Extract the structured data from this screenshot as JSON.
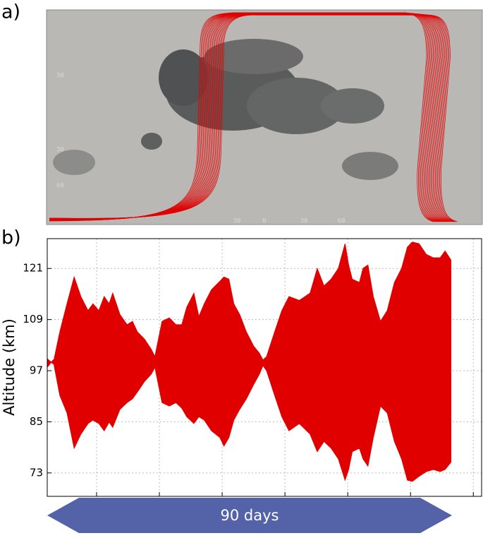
{
  "map": {
    "panel_label": "a)",
    "lat_labels": [
      "30",
      "30",
      "60"
    ],
    "lon_labels": [
      "30",
      "0",
      "30",
      "60"
    ]
  },
  "chart_data": {
    "type": "band",
    "panel_label": "b)",
    "y_label": "Altitude (km)",
    "annotation": "90 days",
    "color": "#e00000",
    "grid": true,
    "xlim": [
      0,
      97
    ],
    "xticks": [
      {
        "value": 11,
        "label": null
      },
      {
        "value": 25,
        "label": null
      },
      {
        "value": 39,
        "label": null
      },
      {
        "value": 53,
        "label": null
      },
      {
        "value": 67,
        "label": null
      },
      {
        "value": 81,
        "label": null
      },
      {
        "value": 95,
        "label": null
      }
    ],
    "ylim": [
      67.5,
      128
    ],
    "yticks": [
      73,
      85,
      97,
      109,
      121
    ],
    "x": [
      0,
      1.3,
      2.8,
      4.4,
      6.0,
      7.5,
      9.1,
      10.2,
      11.5,
      12.7,
      13.8,
      14.6,
      16.2,
      17.8,
      19.0,
      20.1,
      21.7,
      23.2,
      24.0,
      25.6,
      27.2,
      28.7,
      30.0,
      31.1,
      32.7,
      33.8,
      35.0,
      36.6,
      38.5,
      39.4,
      40.5,
      41.6,
      42.9,
      44.4,
      46.0,
      47.3,
      48.1,
      48.9,
      50.7,
      52.3,
      53.9,
      56.2,
      58.6,
      60.2,
      61.7,
      63.3,
      64.9,
      66.4,
      67.2,
      68.0,
      69.6,
      70.4,
      71.5,
      72.7,
      74.3,
      75.8,
      77.4,
      79.0,
      80.3,
      81.4,
      82.9,
      84.5,
      86.1,
      87.6,
      88.7,
      90.0
    ],
    "series": [
      {
        "values": [
          99.8,
          98.6,
          106.1,
          112.7,
          119.0,
          114.4,
          111.1,
          112.7,
          111.1,
          114.4,
          112.7,
          115.2,
          110.2,
          107.8,
          108.6,
          106.1,
          104.4,
          102.0,
          100.3,
          108.6,
          109.4,
          107.8,
          107.8,
          111.9,
          115.2,
          109.7,
          112.7,
          116.0,
          118.0,
          119.0,
          118.5,
          112.7,
          110.2,
          106.1,
          102.8,
          101.1,
          99.5,
          100.3,
          106.1,
          111.1,
          114.4,
          113.5,
          115.2,
          121.0,
          116.9,
          118.5,
          121.0,
          126.8,
          121.8,
          118.5,
          117.7,
          121.0,
          121.8,
          114.4,
          108.6,
          111.1,
          117.7,
          121.0,
          126.0,
          127.2,
          126.8,
          124.3,
          123.5,
          123.5,
          125.1,
          123.0
        ]
      },
      {
        "values": [
          97.8,
          99.5,
          91.2,
          87.1,
          78.8,
          82.1,
          84.6,
          85.4,
          84.6,
          82.9,
          84.9,
          83.7,
          87.9,
          89.5,
          90.4,
          92.0,
          94.5,
          96.2,
          97.8,
          89.5,
          88.7,
          89.5,
          88.2,
          86.2,
          84.6,
          86.2,
          85.4,
          82.9,
          81.3,
          79.3,
          81.3,
          85.4,
          87.9,
          90.4,
          93.7,
          96.2,
          98.2,
          97.0,
          91.2,
          86.2,
          82.9,
          84.6,
          82.1,
          78.0,
          80.4,
          78.8,
          76.3,
          71.3,
          73.8,
          78.0,
          78.8,
          76.3,
          74.6,
          81.3,
          88.7,
          87.1,
          80.4,
          76.3,
          71.3,
          71.0,
          72.2,
          73.3,
          73.8,
          73.3,
          73.8,
          75.5
        ]
      }
    ]
  }
}
